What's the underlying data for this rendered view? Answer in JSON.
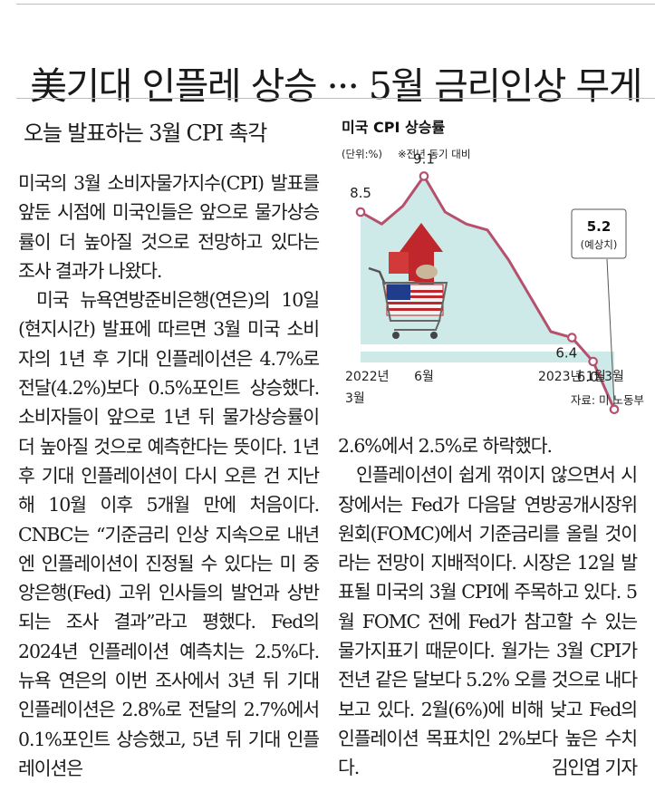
{
  "article": {
    "headline": "美기대 인플레 상승 ··· 5월 금리인상 무게",
    "subheadline": "오늘 발표하는 3월 CPI 촉각",
    "body_left": [
      "미국의 3월 소비자물가지수(CPI) 발표를 앞둔 시점에 미국인들은 앞으로 물가상승률이 더 높아질 것으로 전망하고 있다는 조사 결과가 나왔다.",
      "미국 뉴욕연방준비은행(연은)의 10일(현지시간) 발표에 따르면 3월 미국 소비자의 1년 후 기대 인플레이션은 4.7%로 전달(4.2%)보다 0.5%포인트 상승했다. 소비자들이 앞으로 1년 뒤 물가상승률이 더 높아질 것으로 예측한다는 뜻이다. 1년 후 기대 인플레이션이 다시 오른 건 지난해 10월 이후 5개월 만에 처음이다. CNBC는 “기준금리 인상 지속으로 내년엔 인플레이션이 진정될 수 있다는 미 중앙은행(Fed) 고위 인사들의 발언과 상반되는 조사 결과”라고 평했다. Fed의 2024년 인플레이션 예측치는 2.5%다. 뉴욕 연은의 이번 조사에서 3년 뒤 기대 인플레이션은 2.8%로 전달의 2.7%에서 0.1%포인트 상승했고, 5년 뒤 기대 인플레이션은"
    ],
    "body_right": [
      "2.6%에서 2.5%로 하락했다.",
      "인플레이션이 쉽게 꺾이지 않으면서 시장에서는 Fed가 다음달 연방공개시장위원회(FOMC)에서 기준금리를 올릴 것이라는 전망이 지배적이다. 시장은 12일 발표될 미국의 3월 CPI에 주목하고 있다. 5월 FOMC 전에 Fed가 참고할 수 있는 물가지표기 때문이다. 월가는 3월 CPI가 전년 같은 달보다 5.2% 오를 것으로 내다보고 있다. 2월(6%)에 비해 낮고 Fed의 인플레이션 목표치인 2%보다 높은 수치다."
    ],
    "byline": "김인엽 기자"
  },
  "chart_data": {
    "type": "area",
    "title": "미국 CPI 상승률",
    "unit_note": "(단위:%)",
    "basis_note": "※전년 동기 대비",
    "source": "자료: 미 노동부",
    "x_ticks": [
      {
        "label": "2022년",
        "sub": "3월"
      },
      {
        "label": "6월",
        "sub": ""
      },
      {
        "label": "2023년 1월",
        "sub": ""
      },
      {
        "label": "3월",
        "sub": ""
      }
    ],
    "series": [
      {
        "points": [
          {
            "x": "2022-03",
            "y": 8.5,
            "label": "8.5"
          },
          {
            "x": "2022-04",
            "y": 8.3,
            "label": ""
          },
          {
            "x": "2022-05",
            "y": 8.6,
            "label": ""
          },
          {
            "x": "2022-06",
            "y": 9.1,
            "label": "9.1"
          },
          {
            "x": "2022-07",
            "y": 8.5,
            "label": ""
          },
          {
            "x": "2022-08",
            "y": 8.3,
            "label": ""
          },
          {
            "x": "2022-09",
            "y": 8.2,
            "label": ""
          },
          {
            "x": "2022-10",
            "y": 7.7,
            "label": ""
          },
          {
            "x": "2022-11",
            "y": 7.1,
            "label": ""
          },
          {
            "x": "2022-12",
            "y": 6.5,
            "label": ""
          },
          {
            "x": "2023-01",
            "y": 6.4,
            "label": "6.4"
          },
          {
            "x": "2023-02",
            "y": 6.0,
            "label": "6.0"
          },
          {
            "x": "2023-03",
            "y": 5.2,
            "label": ""
          }
        ]
      }
    ],
    "callout": {
      "value": "5.2",
      "note": "(예상치)"
    },
    "colors": {
      "line": "#b5506d",
      "area": "#cde9e8",
      "marker_fill": "#ffffff"
    }
  }
}
